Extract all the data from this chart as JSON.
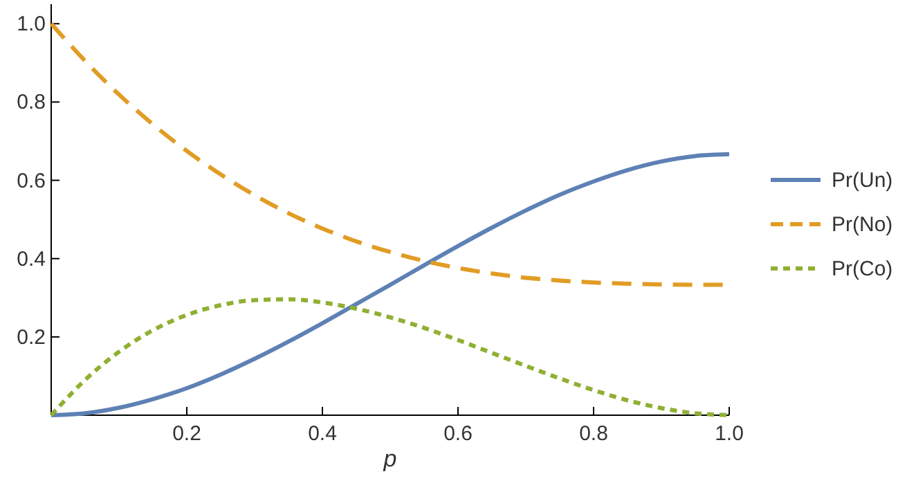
{
  "chart_data": {
    "type": "line",
    "xlabel": "p",
    "x": [
      0,
      0.05,
      0.1,
      0.15,
      0.2,
      0.25,
      0.3,
      0.35,
      0.4,
      0.45,
      0.5,
      0.55,
      0.6,
      0.65,
      0.7,
      0.75,
      0.8,
      0.85,
      0.9,
      0.95,
      1
    ],
    "series": [
      {
        "name": "Pr(Un)",
        "color": "#5e81b5",
        "line_style": "solid",
        "values": [
          0,
          0.005,
          0.019,
          0.041,
          0.069,
          0.104,
          0.144,
          0.188,
          0.235,
          0.284,
          0.333,
          0.383,
          0.432,
          0.479,
          0.523,
          0.563,
          0.597,
          0.626,
          0.648,
          0.662,
          0.667
        ]
      },
      {
        "name": "Pr(No)",
        "color": "#e19c24",
        "line_style": "dashed",
        "values": [
          1,
          0.905,
          0.819,
          0.743,
          0.675,
          0.615,
          0.562,
          0.516,
          0.477,
          0.444,
          0.417,
          0.394,
          0.376,
          0.362,
          0.351,
          0.344,
          0.339,
          0.336,
          0.334,
          0.333,
          0.333
        ]
      },
      {
        "name": "Pr(Co)",
        "color": "#8fb032",
        "line_style": "dotted",
        "values": [
          0,
          0.09,
          0.162,
          0.217,
          0.256,
          0.281,
          0.294,
          0.296,
          0.288,
          0.272,
          0.25,
          0.223,
          0.192,
          0.159,
          0.126,
          0.094,
          0.064,
          0.038,
          0.018,
          0.005,
          0
        ]
      }
    ],
    "xlim": [
      0,
      1
    ],
    "xticks": [
      0.2,
      0.4,
      0.6,
      0.8,
      {
        "value": 1,
        "label": "1.0"
      }
    ],
    "ylim": [
      0,
      1.05
    ],
    "yticks": [
      0.2,
      0.4,
      0.6,
      0.8,
      {
        "value": 1,
        "label": "1.0"
      }
    ],
    "grid": false,
    "legend": "right",
    "marker": "none"
  }
}
